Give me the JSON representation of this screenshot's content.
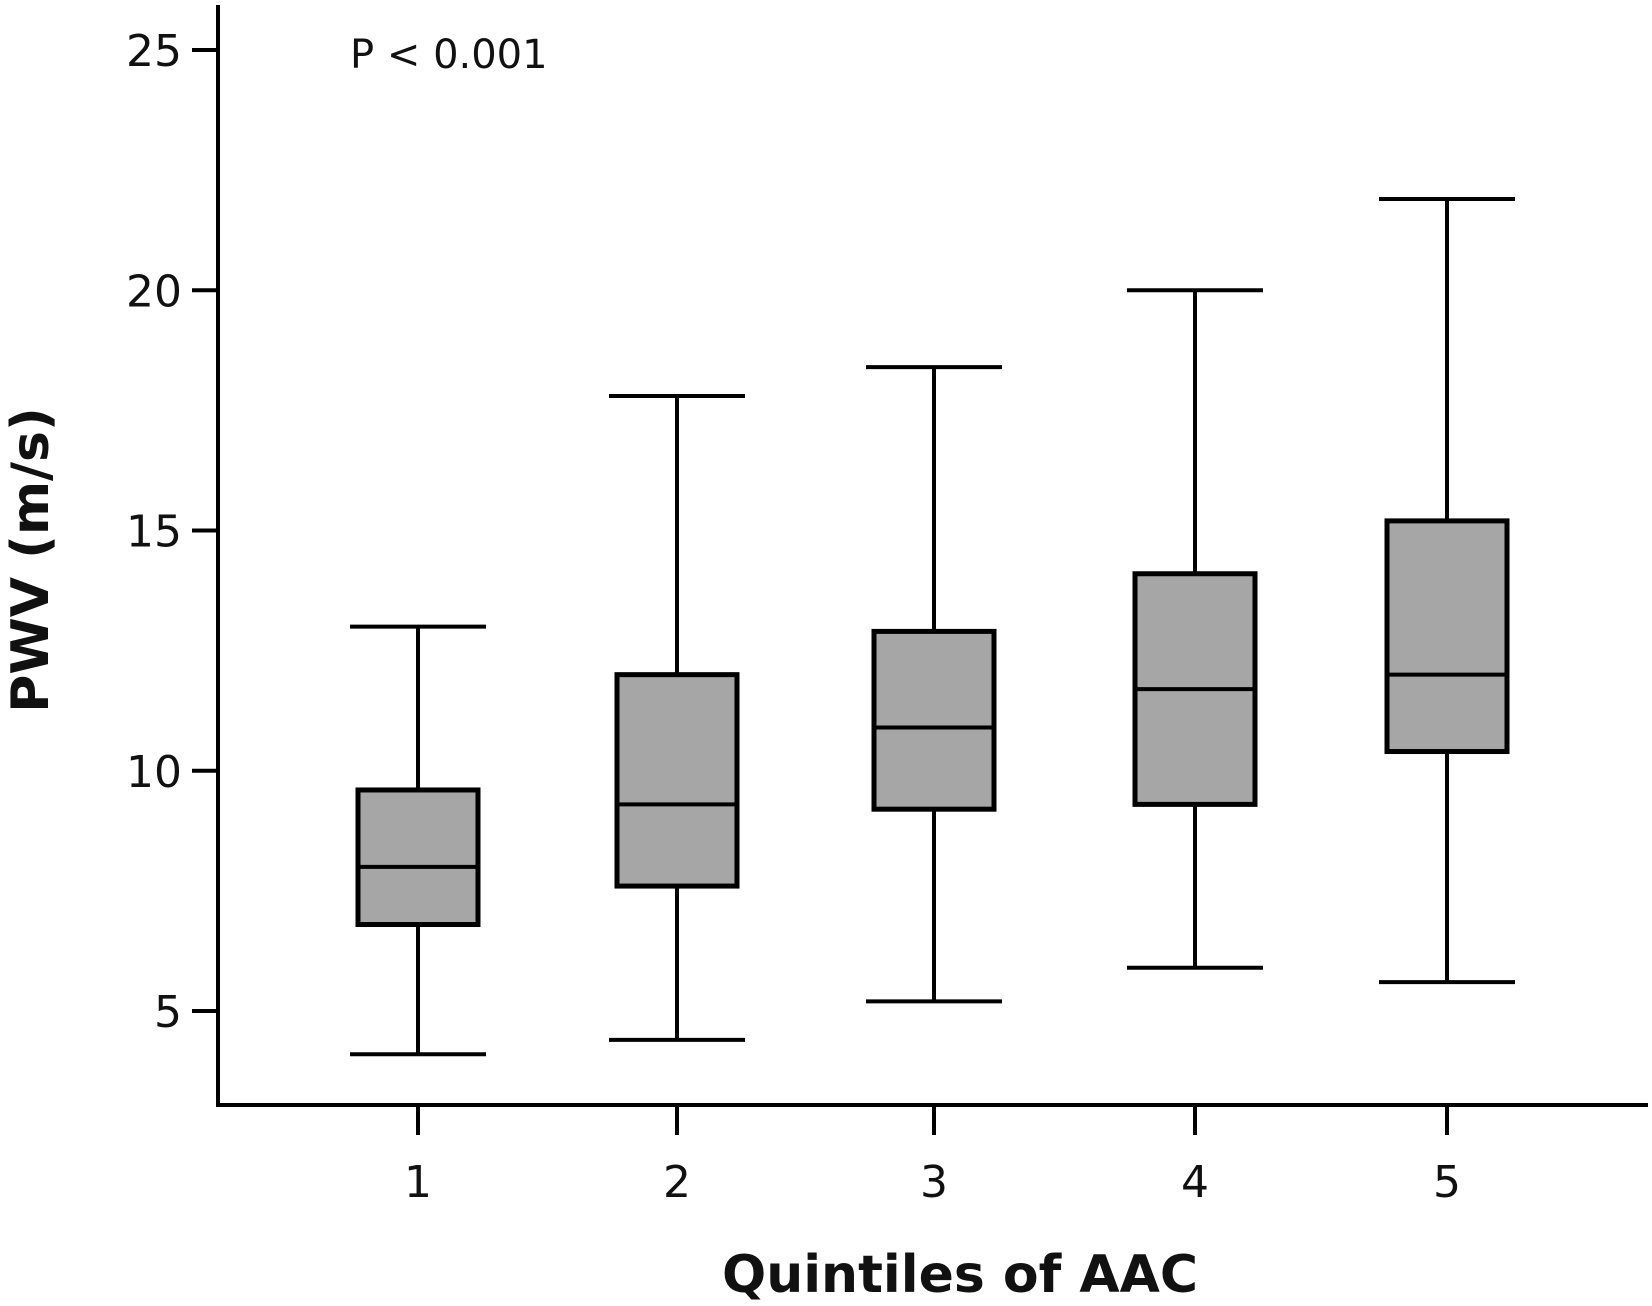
{
  "chart_data": {
    "type": "box",
    "xlabel": "Quintiles of AAC",
    "ylabel": "PWV (m/s)",
    "annotation": "P < 0.001",
    "ylim": [
      3,
      26
    ],
    "yticks": [
      5,
      10,
      15,
      20,
      25
    ],
    "categories": [
      "1",
      "2",
      "3",
      "4",
      "5"
    ],
    "boxes": [
      {
        "category": "1",
        "min": 4.1,
        "q1": 6.8,
        "median": 8.0,
        "q3": 9.6,
        "max": 13.0
      },
      {
        "category": "2",
        "min": 4.4,
        "q1": 7.6,
        "median": 9.3,
        "q3": 12.0,
        "max": 17.8
      },
      {
        "category": "3",
        "min": 5.2,
        "q1": 9.2,
        "median": 10.9,
        "q3": 12.9,
        "max": 18.4
      },
      {
        "category": "4",
        "min": 5.9,
        "q1": 9.3,
        "median": 11.7,
        "q3": 14.1,
        "max": 20.0
      },
      {
        "category": "5",
        "min": 5.6,
        "q1": 10.4,
        "median": 12.0,
        "q3": 15.2,
        "max": 21.9
      }
    ],
    "colors": {
      "box_fill": "#a6a6a6",
      "stroke": "#000000"
    },
    "grid": false,
    "legend": "none"
  }
}
